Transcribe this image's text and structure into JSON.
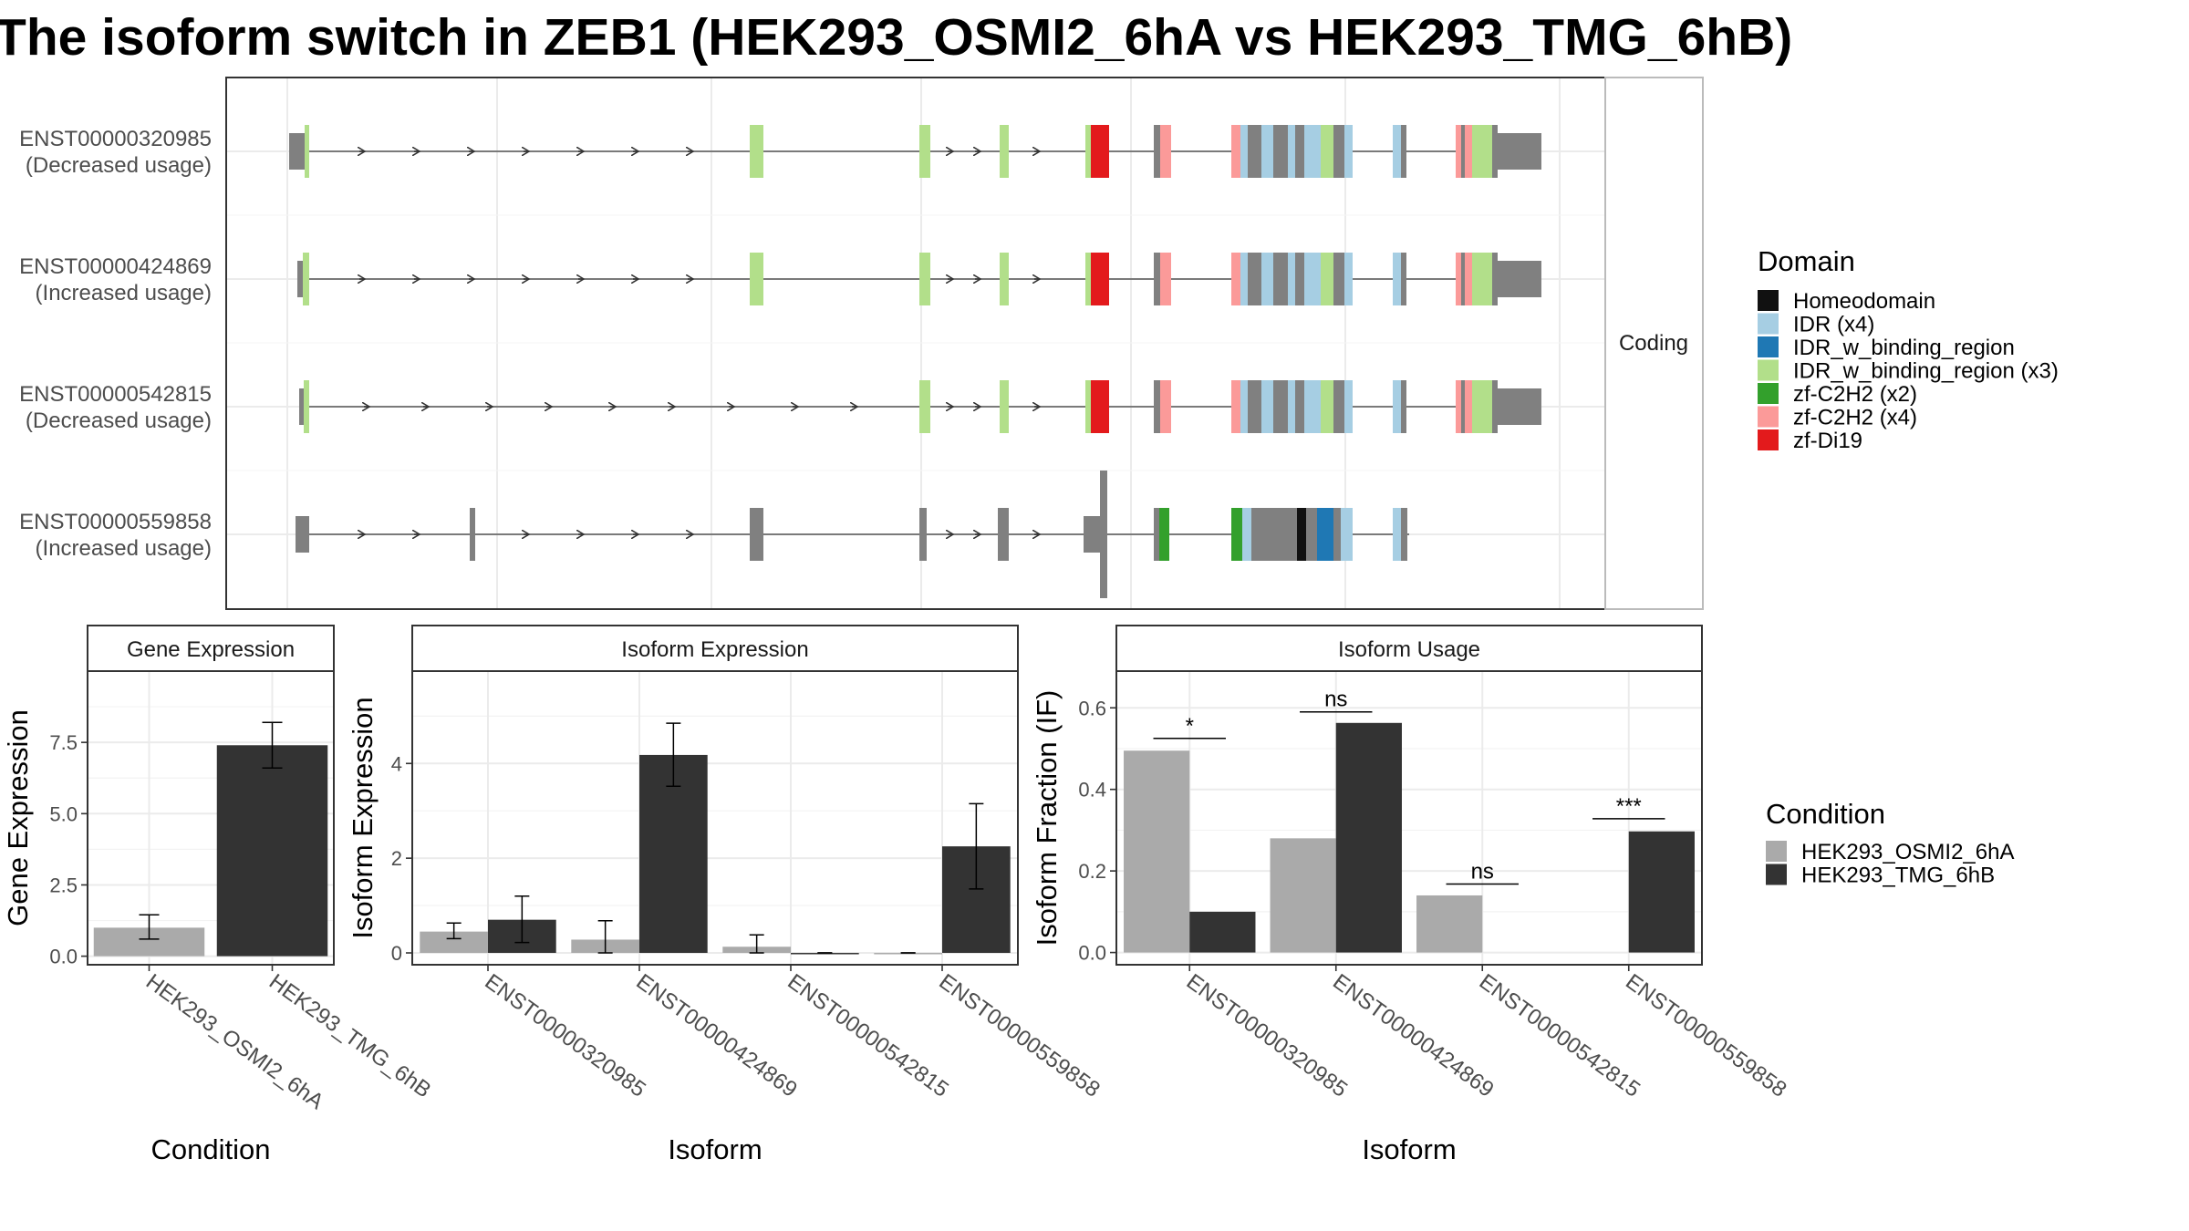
{
  "title": "The isoform switch in ZEB1 (HEK293_OSMI2_6hA vs HEK293_TMG_6hB)",
  "colors": {
    "Homeodomain": "#111111",
    "IDR (x4)": "#a6cee3",
    "IDR_w_binding_region": "#1f78b4",
    "IDR_w_binding_region (x3)": "#b2df8a",
    "zf-C2H2 (x2)": "#33a02c",
    "zf-C2H2 (x4)": "#fb9a99",
    "zf-Di19": "#e31a1c",
    "noncoding": "#808080",
    "cond_a": "#aaaaaa",
    "cond_b": "#333333"
  },
  "chart_data": [
    {
      "type": "gene-structure",
      "facet_label": "Coding",
      "transcripts": [
        {
          "id": "ENST00000320985",
          "usage": "(Decreased usage)"
        },
        {
          "id": "ENST00000424869",
          "usage": "(Increased usage)"
        },
        {
          "id": "ENST00000542815",
          "usage": "(Decreased usage)"
        },
        {
          "id": "ENST00000559858",
          "usage": "(Increased usage)"
        }
      ],
      "legend": {
        "title": "Domain",
        "entries": [
          "Homeodomain",
          "IDR (x4)",
          "IDR_w_binding_region",
          "IDR_w_binding_region (x3)",
          "zf-C2H2 (x2)",
          "zf-C2H2 (x4)",
          "zf-Di19"
        ]
      }
    },
    {
      "type": "bar",
      "title": "Gene Expression",
      "xlabel": "Condition",
      "ylabel": "Gene Expression",
      "categories": [
        "HEK293_OSMI2_6hA",
        "HEK293_TMG_6hB"
      ],
      "values": [
        1.0,
        7.4
      ],
      "errors": [
        [
          0.6,
          1.45
        ],
        [
          6.6,
          8.2
        ]
      ],
      "ylim": [
        -0.3,
        10.0
      ],
      "yticks": [
        0.0,
        2.5,
        5.0,
        7.5
      ],
      "ytick_labels": [
        "0.0",
        "2.5",
        "5.0",
        "7.5"
      ]
    },
    {
      "type": "bar",
      "title": "Isoform Expression",
      "xlabel": "Isoform",
      "ylabel": "Isoform Expression",
      "categories": [
        "ENST00000320985",
        "ENST00000424869",
        "ENST00000542815",
        "ENST00000559858"
      ],
      "series": [
        {
          "condition": "HEK293_OSMI2_6hA",
          "values": [
            0.45,
            0.28,
            0.13,
            0.0
          ],
          "errors": [
            [
              0.3,
              0.63
            ],
            [
              0.0,
              0.68
            ],
            [
              0.0,
              0.38
            ],
            [
              0.0,
              0.0
            ]
          ]
        },
        {
          "condition": "HEK293_TMG_6hB",
          "values": [
            0.7,
            4.18,
            0.0,
            2.25
          ],
          "errors": [
            [
              0.22,
              1.2
            ],
            [
              3.52,
              4.85
            ],
            [
              0.0,
              0.0
            ],
            [
              1.35,
              3.15
            ]
          ]
        }
      ],
      "ylim": [
        -0.25,
        5.95
      ],
      "yticks": [
        0,
        2,
        4
      ],
      "ytick_labels": [
        "0",
        "2",
        "4"
      ]
    },
    {
      "type": "bar",
      "title": "Isoform Usage",
      "xlabel": "Isoform",
      "ylabel": "Isoform Fraction (IF)",
      "categories": [
        "ENST00000320985",
        "ENST00000424869",
        "ENST00000542815",
        "ENST00000559858"
      ],
      "series": [
        {
          "condition": "HEK293_OSMI2_6hA",
          "values": [
            0.495,
            0.28,
            0.14,
            0.0
          ]
        },
        {
          "condition": "HEK293_TMG_6hB",
          "values": [
            0.1,
            0.563,
            0.0,
            0.297
          ]
        }
      ],
      "significance": [
        "*",
        "ns",
        "ns",
        "***"
      ],
      "significance_y": [
        0.525,
        0.59,
        0.168,
        0.328
      ],
      "ylim": [
        -0.03,
        0.69
      ],
      "yticks": [
        0.0,
        0.2,
        0.4,
        0.6
      ],
      "ytick_labels": [
        "0.0",
        "0.2",
        "0.4",
        "0.6"
      ],
      "legend": {
        "title": "Condition",
        "entries": [
          "HEK293_OSMI2_6hA",
          "HEK293_TMG_6hB"
        ]
      }
    }
  ]
}
